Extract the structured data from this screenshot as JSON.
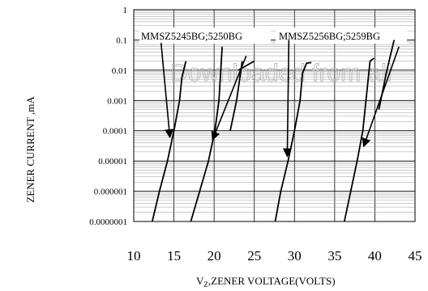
{
  "chart_data": {
    "type": "line",
    "title": "",
    "xlabel_main": "V",
    "xlabel_sub": "Z",
    "xlabel_rest": ",ZENER VOLTAGE(VOLTS)",
    "ylabel": "ZENER CURRENT ,mA",
    "x_ticks": [
      "10",
      "15",
      "20",
      "25",
      "30",
      "35",
      "40",
      "45"
    ],
    "y_ticks": [
      "1",
      "0.1",
      "0.01",
      "0.001",
      "0.0001",
      "0.00001",
      "0.000001",
      "0.0000001"
    ],
    "xlim": [
      10,
      45
    ],
    "ylim": [
      1e-07,
      1
    ],
    "y_scale": "log",
    "grid": true,
    "legend": "none",
    "annotations": [
      {
        "text": "MMSZ5245BG;5250BG"
      },
      {
        "text": "MMSZ5256BG;5259BG"
      }
    ],
    "series": [
      {
        "x": [
          12.3,
          13.2,
          14.2,
          15.0,
          15.7,
          16.0,
          16.5
        ],
        "y": [
          1e-07,
          1e-06,
          1e-05,
          0.0001,
          0.001,
          0.006,
          0.02
        ]
      },
      {
        "x": [
          17.1,
          18.2,
          19.3,
          20.1,
          20.6,
          21.0
        ],
        "y": [
          1e-07,
          1e-06,
          1e-05,
          0.0001,
          0.001,
          0.06
        ]
      },
      {
        "x": [
          27.6,
          28.3,
          29.2,
          30.0,
          30.7,
          31.0,
          31.5,
          32.1
        ],
        "y": [
          1e-07,
          1e-06,
          1e-05,
          0.0001,
          0.001,
          0.008,
          0.017,
          0.018
        ]
      },
      {
        "x": [
          36.2,
          37.0,
          37.8,
          38.5,
          38.9,
          39.4,
          39.9
        ],
        "y": [
          1e-07,
          1e-06,
          1e-05,
          0.0001,
          0.001,
          0.02,
          0.025
        ]
      },
      {
        "x": [
          22.0,
          22.8,
          23.5
        ],
        "y": [
          0.0001,
          0.001,
          0.02
        ]
      },
      {
        "x": [
          23.0,
          25.0
        ],
        "y": [
          0.01,
          0.02
        ]
      },
      {
        "x": [
          40.5,
          41.5,
          42.4
        ],
        "y": [
          0.0005,
          0.01,
          0.1
        ]
      }
    ],
    "arrows": [
      {
        "from": [
          13.4,
          0.08
        ],
        "to": [
          14.5,
          6e-05
        ]
      },
      {
        "from": [
          24.0,
          0.03
        ],
        "to": [
          19.8,
          5e-05
        ]
      },
      {
        "from": [
          29.3,
          0.1
        ],
        "to": [
          29.1,
          1.4e-05
        ]
      },
      {
        "from": [
          43.0,
          0.06
        ],
        "to": [
          38.6,
          3e-05
        ]
      }
    ],
    "watermark": "Downloaded from all"
  }
}
